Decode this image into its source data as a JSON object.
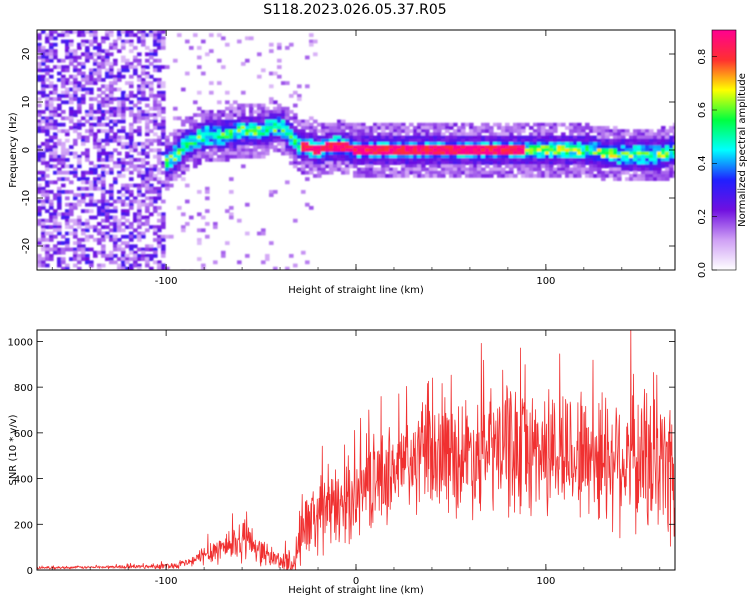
{
  "title": "S118.2023.026.05.37.R05",
  "chart_data": [
    {
      "type": "heatmap",
      "xlabel": "Height of straight line (km)",
      "ylabel": "Frequency (Hz)",
      "xlim": [
        -168,
        168
      ],
      "ylim": [
        -25,
        25
      ],
      "xticks": [
        -100,
        0,
        100
      ],
      "x_tick_labels": [
        "-100",
        "",
        "100"
      ],
      "yticks": [
        -20,
        -10,
        0,
        10,
        20
      ],
      "colorbar": {
        "label": "Normalized spectral amplitude",
        "range": [
          0,
          0.9
        ],
        "ticks": [
          0.0,
          0.2,
          0.4,
          0.6,
          0.8
        ],
        "colors": [
          "#ffffff",
          "#cfa0f5",
          "#7010e0",
          "#2020ff",
          "#00ffff",
          "#00ff40",
          "#ffff00",
          "#ff3030",
          "#ff0090"
        ]
      },
      "ridge": {
        "x": [
          -100,
          -90,
          -80,
          -70,
          -60,
          -50,
          -40,
          -35,
          -30,
          -20,
          -10,
          0,
          20,
          40,
          60,
          80,
          100,
          120,
          140,
          160,
          168
        ],
        "frequency": [
          -3,
          1,
          3,
          3,
          4,
          4,
          5,
          3,
          1,
          0,
          1,
          0,
          0,
          0,
          0,
          0,
          0,
          0,
          -1,
          -1,
          0
        ]
      }
    },
    {
      "type": "line",
      "xlabel": "Height of straight line (km)",
      "ylabel": "SNR (10 * v/v)",
      "xlim": [
        -168,
        168
      ],
      "ylim": [
        0,
        1050
      ],
      "xticks": [
        -100,
        0,
        100
      ],
      "yticks": [
        0,
        200,
        400,
        600,
        800,
        1000
      ],
      "line_color": "#f03030",
      "series": [
        {
          "x": [
            -168,
            -140,
            -110,
            -95,
            -85,
            -80,
            -70,
            -65,
            -60,
            -55,
            -50,
            -45,
            -40,
            -35,
            -32,
            -30,
            -28,
            -25,
            -20,
            -15,
            -10,
            -5,
            0,
            5,
            10,
            15,
            20,
            30,
            40,
            50,
            60,
            70,
            80,
            90,
            100,
            110,
            120,
            130,
            140,
            150,
            160,
            168
          ],
          "y": [
            10,
            12,
            15,
            20,
            40,
            70,
            100,
            120,
            130,
            125,
            80,
            60,
            40,
            30,
            60,
            120,
            180,
            200,
            230,
            250,
            270,
            300,
            330,
            360,
            390,
            410,
            440,
            470,
            500,
            500,
            510,
            520,
            540,
            520,
            520,
            520,
            510,
            500,
            500,
            480,
            460,
            450
          ],
          "spread": [
            5,
            5,
            8,
            12,
            20,
            40,
            60,
            70,
            80,
            60,
            50,
            40,
            30,
            60,
            80,
            100,
            100,
            120,
            140,
            150,
            150,
            150,
            160,
            160,
            170,
            170,
            180,
            190,
            200,
            210,
            220,
            230,
            260,
            240,
            240,
            240,
            250,
            260,
            270,
            280,
            290,
            300
          ]
        }
      ]
    }
  ]
}
